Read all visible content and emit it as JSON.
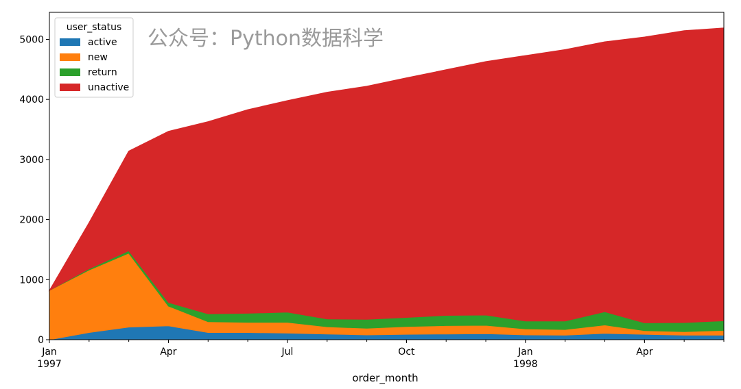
{
  "watermark": "公众号：Python数据科学",
  "chart_data": {
    "type": "area",
    "stacked": true,
    "xlabel": "order_month",
    "ylabel": "",
    "ylim": [
      0,
      5450
    ],
    "yticks": [
      0,
      1000,
      2000,
      3000,
      4000,
      5000
    ],
    "x": [
      "1997-01",
      "1997-02",
      "1997-03",
      "1997-04",
      "1997-05",
      "1997-06",
      "1997-07",
      "1997-08",
      "1997-09",
      "1997-10",
      "1997-11",
      "1997-12",
      "1998-01",
      "1998-02",
      "1998-03",
      "1998-04",
      "1998-05",
      "1998-06"
    ],
    "xticks": [
      {
        "x": "1997-01",
        "label": "Jan",
        "sublabel": "1997"
      },
      {
        "x": "1997-04",
        "label": "Apr",
        "sublabel": ""
      },
      {
        "x": "1997-07",
        "label": "Jul",
        "sublabel": ""
      },
      {
        "x": "1997-10",
        "label": "Oct",
        "sublabel": ""
      },
      {
        "x": "1998-01",
        "label": "Jan",
        "sublabel": "1998"
      },
      {
        "x": "1998-04",
        "label": "Apr",
        "sublabel": ""
      }
    ],
    "legend": {
      "title": "user_status",
      "position": "top-left"
    },
    "series": [
      {
        "name": "active",
        "color": "#1f77b4",
        "values": [
          0,
          120,
          210,
          230,
          120,
          120,
          110,
          95,
          80,
          90,
          95,
          100,
          80,
          75,
          105,
          90,
          75,
          75
        ]
      },
      {
        "name": "new",
        "color": "#ff7f0e",
        "values": [
          820,
          1040,
          1230,
          330,
          180,
          170,
          180,
          120,
          110,
          130,
          140,
          140,
          100,
          95,
          140,
          60,
          60,
          80
        ]
      },
      {
        "name": "return",
        "color": "#2ca02c",
        "values": [
          0,
          20,
          40,
          60,
          130,
          150,
          170,
          130,
          150,
          150,
          170,
          170,
          130,
          140,
          220,
          130,
          150,
          160
        ]
      },
      {
        "name": "unactive",
        "color": "#d62728",
        "values": [
          0,
          770,
          1660,
          2850,
          3200,
          3390,
          3520,
          3775,
          3880,
          3990,
          4090,
          4220,
          4420,
          4520,
          4495,
          4760,
          4860,
          4875
        ]
      }
    ]
  }
}
